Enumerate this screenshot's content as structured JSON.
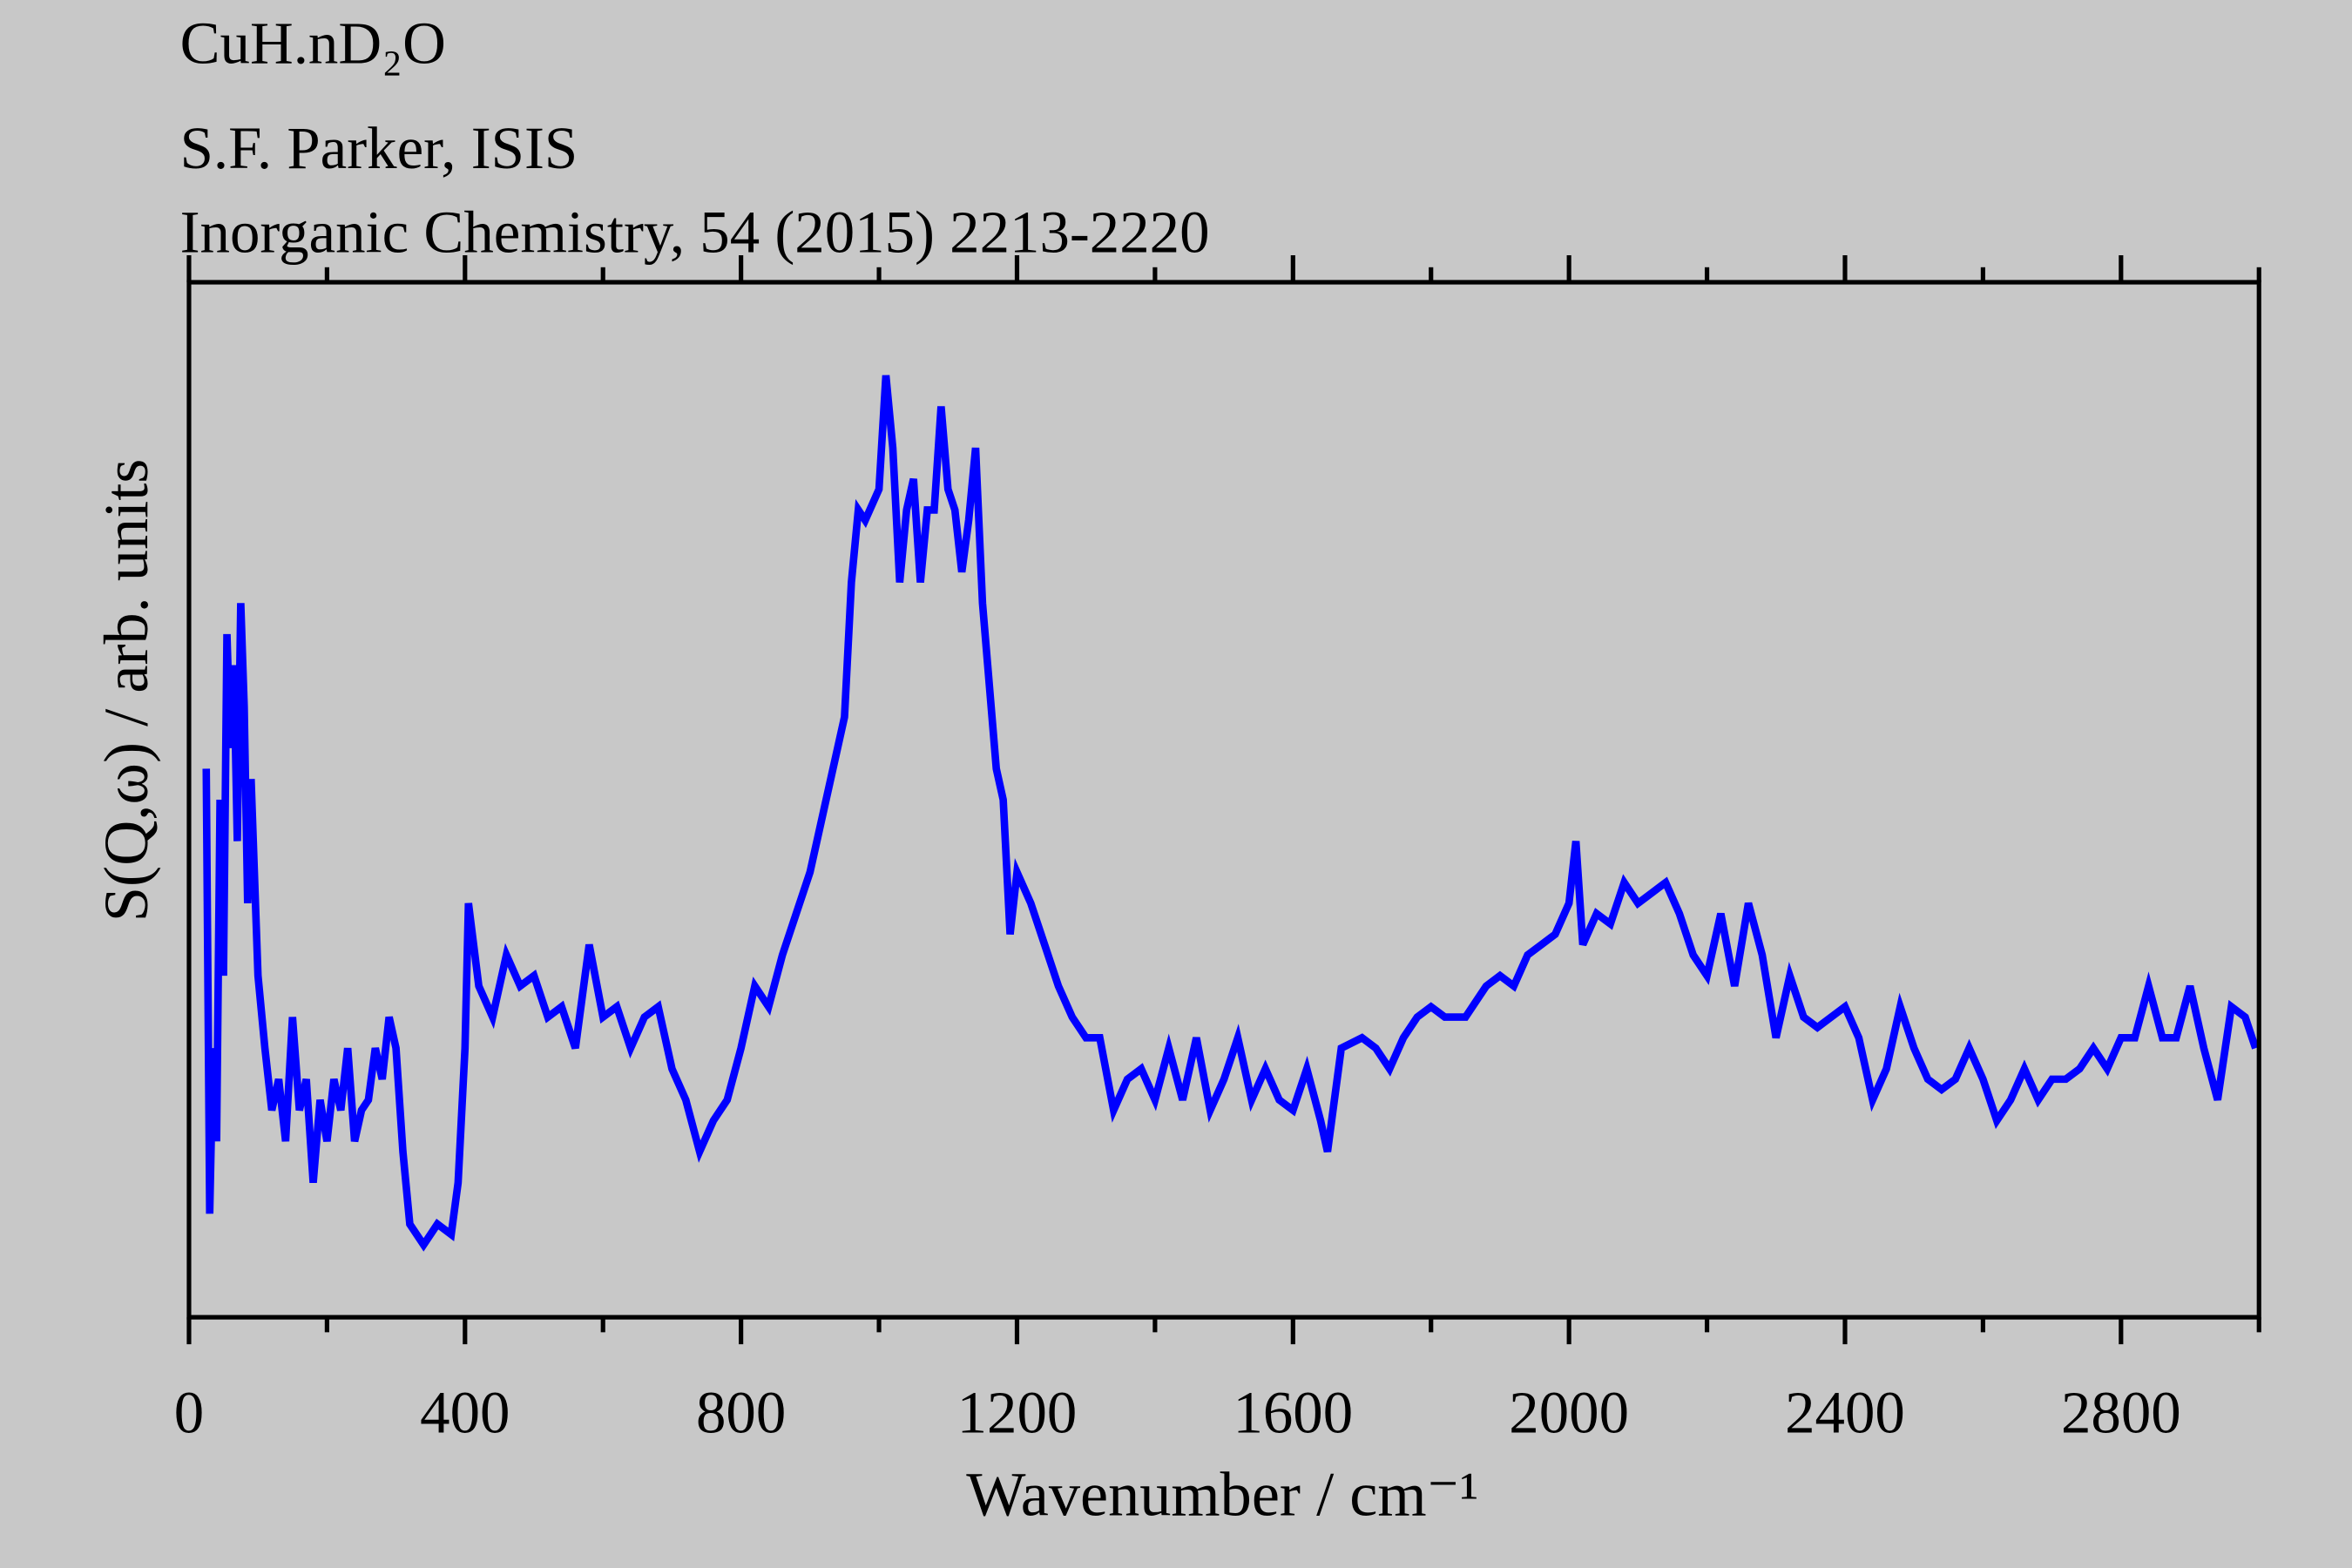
{
  "chart_data": {
    "type": "line",
    "title": "CuH.nD₂O",
    "subtitle": "S.F. Parker, ISIS",
    "reference": "Inorganic Chemistry, 54 (2015) 2213-2220",
    "x_label": "Wavenumber / cm⁻¹",
    "y_label": "S(Q,ω) / arb. units",
    "xlim": [
      0,
      3000
    ],
    "ylim": [
      0,
      100
    ],
    "xticks": [
      0,
      400,
      800,
      1200,
      1600,
      2000,
      2400,
      2800
    ],
    "xticks_minor": [
      200,
      600,
      1000,
      1400,
      1800,
      2200,
      2600,
      3000
    ],
    "x": [
      25,
      30,
      35,
      40,
      45,
      50,
      55,
      60,
      65,
      70,
      75,
      80,
      85,
      90,
      100,
      110,
      120,
      130,
      140,
      150,
      160,
      170,
      180,
      190,
      200,
      210,
      220,
      230,
      240,
      250,
      260,
      270,
      280,
      290,
      300,
      310,
      320,
      340,
      360,
      380,
      390,
      400,
      405,
      420,
      440,
      460,
      480,
      500,
      520,
      540,
      560,
      580,
      600,
      620,
      640,
      660,
      680,
      700,
      720,
      740,
      760,
      780,
      800,
      820,
      840,
      860,
      880,
      900,
      920,
      940,
      950,
      960,
      970,
      980,
      1000,
      1010,
      1020,
      1030,
      1040,
      1050,
      1060,
      1070,
      1080,
      1090,
      1100,
      1110,
      1120,
      1130,
      1140,
      1150,
      1160,
      1170,
      1180,
      1190,
      1200,
      1220,
      1240,
      1260,
      1280,
      1300,
      1320,
      1340,
      1360,
      1380,
      1400,
      1420,
      1440,
      1460,
      1480,
      1500,
      1520,
      1540,
      1560,
      1580,
      1600,
      1620,
      1640,
      1650,
      1670,
      1700,
      1720,
      1740,
      1760,
      1780,
      1800,
      1820,
      1850,
      1880,
      1900,
      1920,
      1940,
      1960,
      1980,
      2000,
      2010,
      2020,
      2040,
      2060,
      2080,
      2100,
      2120,
      2140,
      2160,
      2180,
      2200,
      2220,
      2240,
      2260,
      2280,
      2300,
      2320,
      2340,
      2360,
      2380,
      2400,
      2420,
      2440,
      2460,
      2480,
      2500,
      2520,
      2540,
      2560,
      2580,
      2600,
      2620,
      2640,
      2660,
      2680,
      2700,
      2720,
      2740,
      2760,
      2780,
      2800,
      2820,
      2840,
      2860,
      2880,
      2900,
      2920,
      2940,
      2960,
      2980,
      2995
    ],
    "series": [
      {
        "color": "#0000ff",
        "values": [
          53,
          10,
          26,
          17,
          50,
          33,
          66,
          55,
          63,
          46,
          69,
          59,
          40,
          52,
          33,
          26,
          20,
          23,
          17,
          29,
          20,
          23,
          13,
          21,
          17,
          23,
          20,
          26,
          17,
          20,
          21,
          26,
          23,
          29,
          26,
          16,
          9,
          7,
          9,
          8,
          13,
          26,
          40,
          32,
          29,
          35,
          32,
          33,
          29,
          30,
          26,
          36,
          29,
          30,
          26,
          29,
          30,
          24,
          21,
          16,
          19,
          21,
          26,
          32,
          30,
          35,
          39,
          43,
          49,
          55,
          58,
          71,
          78,
          77,
          80,
          91,
          84,
          71,
          78,
          81,
          71,
          78,
          78,
          88,
          80,
          78,
          72,
          77,
          84,
          69,
          61,
          53,
          50,
          37,
          43,
          40,
          36,
          32,
          29,
          27,
          27,
          20,
          23,
          24,
          21,
          26,
          21,
          27,
          20,
          23,
          27,
          21,
          24,
          21,
          20,
          24,
          19,
          16,
          26,
          27,
          26,
          24,
          27,
          29,
          30,
          29,
          29,
          32,
          33,
          32,
          35,
          36,
          37,
          40,
          46,
          36,
          39,
          38,
          42,
          40,
          41,
          42,
          39,
          35,
          33,
          39,
          32,
          40,
          35,
          27,
          33,
          29,
          28,
          29,
          30,
          27,
          21,
          24,
          30,
          26,
          23,
          22,
          23,
          26,
          23,
          19,
          21,
          24,
          21,
          23,
          23,
          24,
          26,
          24,
          27,
          27,
          32,
          27,
          27,
          32,
          26,
          21,
          30,
          29,
          26
        ]
      }
    ]
  }
}
